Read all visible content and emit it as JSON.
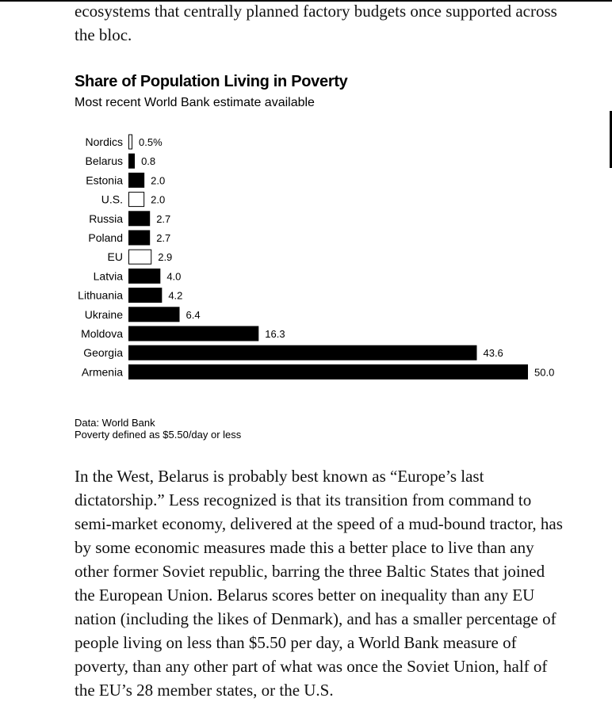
{
  "article": {
    "para_top": "ecosystems that centrally planned factory budgets once supported across the bloc.",
    "para_bottom": "In the West, Belarus is probably best known as “Europe’s last dictatorship.” Less recognized is that its transition from command to semi-market economy, delivered at the speed of a mud-bound tractor, has by some economic measures made this a better place to live than any other former Soviet republic, barring the three Baltic States that joined the European Union. Belarus scores better on inequality than any EU nation (including the likes of Denmark), and has a smaller percentage of people living on less than $5.50 per day, a World Bank measure of poverty, than any other part of what was once the Soviet Union, half of the EU’s 28 member states, or the U.S."
  },
  "chart_data": {
    "type": "bar",
    "orientation": "horizontal",
    "title": "Share of Population Living in Poverty",
    "subtitle": "Most recent World Bank estimate available",
    "categories": [
      "Nordics",
      "Belarus",
      "Estonia",
      "U.S.",
      "Russia",
      "Poland",
      "EU",
      "Latvia",
      "Lithuania",
      "Ukraine",
      "Moldova",
      "Georgia",
      "Armenia"
    ],
    "values": [
      0.5,
      0.8,
      2.0,
      2.0,
      2.7,
      2.7,
      2.9,
      4.0,
      4.2,
      6.4,
      16.3,
      43.6,
      50.0
    ],
    "value_labels": [
      "0.5%",
      "0.8",
      "2.0",
      "2.0",
      "2.7",
      "2.7",
      "2.9",
      "4.0",
      "4.2",
      "6.4",
      "16.3",
      "43.6",
      "50.0"
    ],
    "bar_fill": [
      "outline",
      "solid",
      "solid",
      "outline",
      "solid",
      "solid",
      "outline",
      "solid",
      "solid",
      "solid",
      "solid",
      "solid",
      "solid"
    ],
    "xlim": [
      0,
      50
    ],
    "grid": false,
    "source": "Data: World Bank",
    "note": "Poverty defined as $5.50/day or less"
  },
  "colors": {
    "bar": "#000000",
    "outline_fill": "#ffffff",
    "text": "#111111"
  }
}
